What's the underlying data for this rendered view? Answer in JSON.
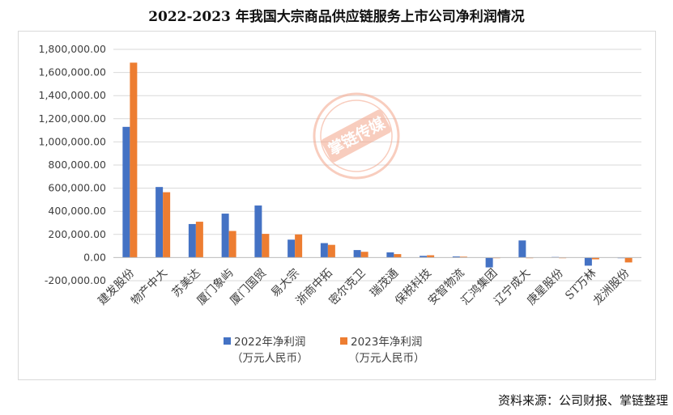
{
  "title": "2022-2023 年我国大宗商品供应链服务上市公司净利润情况",
  "source": "资料来源：公司财报、掌链整理",
  "watermark": "掌链传媒",
  "chart_data": {
    "type": "bar",
    "categories": [
      "建发股份",
      "物产中大",
      "苏美达",
      "厦门象屿",
      "厦门国贸",
      "易大宗",
      "浙商中拓",
      "密尔克卫",
      "瑞茂通",
      "保税科技",
      "安智物流",
      "汇鸿集团",
      "辽宁成大",
      "庚星股份",
      "ST万林",
      "龙洲股份"
    ],
    "series": [
      {
        "name": "2022年净利润",
        "name_line2": "（万元人民币）",
        "color": "#4472C4",
        "values": [
          1130000,
          610000,
          290000,
          380000,
          450000,
          155000,
          125000,
          65000,
          45000,
          15000,
          10000,
          -85000,
          148000,
          5000,
          -70000,
          -3000
        ]
      },
      {
        "name": "2023年净利润",
        "name_line2": "（万元人民币）",
        "color": "#ED7D31",
        "values": [
          1685000,
          565000,
          310000,
          230000,
          205000,
          200000,
          110000,
          50000,
          30000,
          20000,
          8000,
          -2000,
          -3000,
          -2000,
          -15000,
          -42000
        ]
      }
    ],
    "ylim": [
      -200000,
      1800000
    ],
    "yticks": [
      -200000,
      0,
      200000,
      400000,
      600000,
      800000,
      1000000,
      1200000,
      1400000,
      1600000,
      1800000
    ],
    "ytick_labels": [
      "-200,000.00",
      "0.00",
      "200,000.00",
      "400,000.00",
      "600,000.00",
      "800,000.00",
      "1,000,000.00",
      "1,200,000.00",
      "1,400,000.00",
      "1,600,000.00",
      "1,800,000.00"
    ],
    "grid": true,
    "legend_position": "bottom"
  }
}
